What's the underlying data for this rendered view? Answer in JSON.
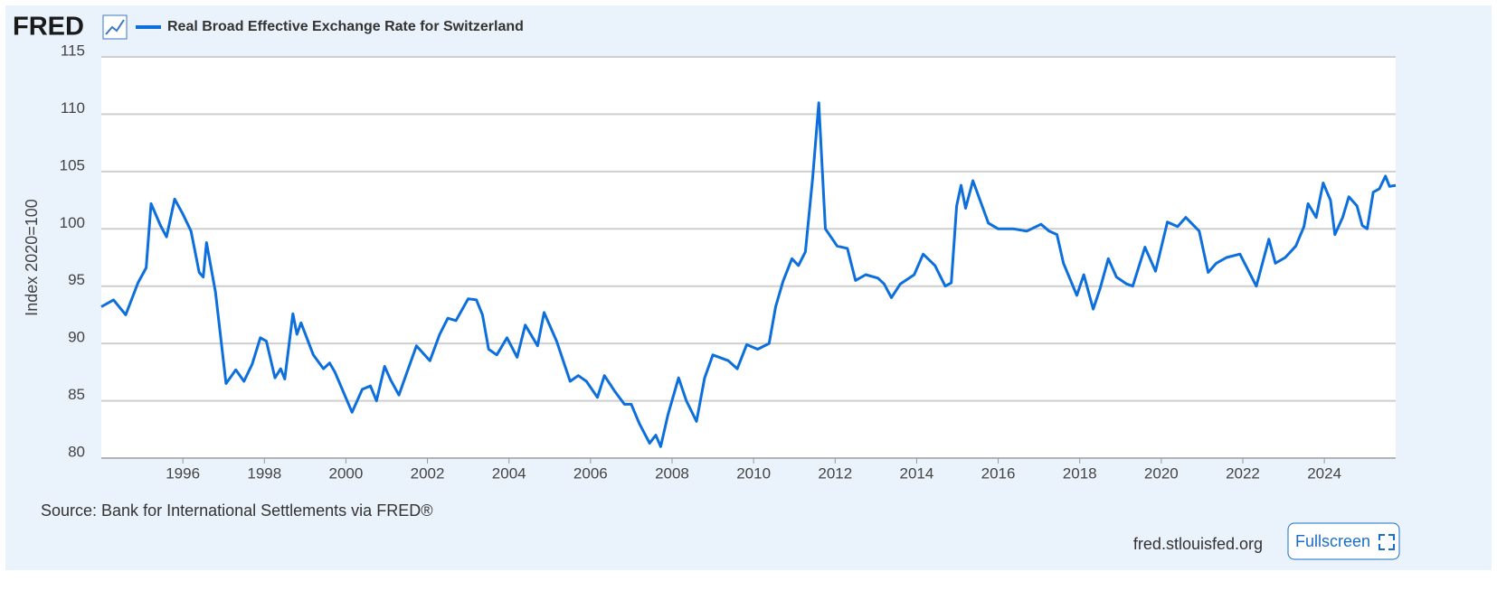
{
  "logo": "FRED",
  "chart_data": {
    "type": "line",
    "title": "Real Broad Effective Exchange Rate for Switzerland",
    "ylabel": "Index 2020=100",
    "source": "Source: Bank for International Settlements via FRED®",
    "site": "fred.stlouisfed.org",
    "button": "Fullscreen",
    "xlim": [
      1994,
      2025.75
    ],
    "xticks": [
      1996,
      1998,
      2000,
      2002,
      2004,
      2006,
      2008,
      2010,
      2012,
      2014,
      2016,
      2018,
      2020,
      2022,
      2024
    ],
    "ylim": [
      80,
      115
    ],
    "yticks": [
      80,
      85,
      90,
      95,
      100,
      105,
      110,
      115
    ],
    "grid": true,
    "series": [
      {
        "name": "Real Broad Effective Exchange Rate for Switzerland",
        "color": "#0c6fdc",
        "x": [
          1994.0,
          1994.3,
          1994.6,
          1994.9,
          1995.1,
          1995.22,
          1995.45,
          1995.6,
          1995.8,
          1996.0,
          1996.2,
          1996.4,
          1996.5,
          1996.58,
          1996.8,
          1997.06,
          1997.3,
          1997.5,
          1997.7,
          1997.9,
          1998.05,
          1998.26,
          1998.4,
          1998.5,
          1998.7,
          1998.8,
          1998.9,
          1999.2,
          1999.45,
          1999.6,
          1999.73,
          2000.15,
          2000.4,
          2000.6,
          2000.75,
          2000.95,
          2001.1,
          2001.3,
          2001.5,
          2001.73,
          2002.06,
          2002.3,
          2002.5,
          2002.7,
          2003.0,
          2003.2,
          2003.35,
          2003.5,
          2003.7,
          2003.95,
          2004.2,
          2004.4,
          2004.7,
          2004.86,
          2005.17,
          2005.5,
          2005.7,
          2005.9,
          2006.17,
          2006.34,
          2006.6,
          2006.83,
          2007.0,
          2007.2,
          2007.45,
          2007.6,
          2007.72,
          2007.9,
          2008.16,
          2008.35,
          2008.6,
          2008.8,
          2009.0,
          2009.38,
          2009.6,
          2009.83,
          2010.1,
          2010.38,
          2010.54,
          2010.72,
          2010.94,
          2011.1,
          2011.27,
          2011.45,
          2011.6,
          2011.76,
          2012.05,
          2012.3,
          2012.5,
          2012.75,
          2013.05,
          2013.2,
          2013.38,
          2013.6,
          2013.94,
          2014.16,
          2014.45,
          2014.7,
          2014.85,
          2014.98,
          2015.09,
          2015.2,
          2015.38,
          2015.76,
          2016.0,
          2016.38,
          2016.7,
          2017.05,
          2017.25,
          2017.44,
          2017.6,
          2017.93,
          2018.1,
          2018.33,
          2018.5,
          2018.7,
          2018.9,
          2019.15,
          2019.3,
          2019.6,
          2019.86,
          2020.15,
          2020.4,
          2020.6,
          2020.93,
          2021.15,
          2021.35,
          2021.6,
          2021.93,
          2022.33,
          2022.64,
          2022.8,
          2023.04,
          2023.3,
          2023.5,
          2023.6,
          2023.8,
          2023.97,
          2024.15,
          2024.26,
          2024.45,
          2024.6,
          2024.8,
          2024.93,
          2025.05,
          2025.2,
          2025.35,
          2025.5,
          2025.6,
          2025.75
        ],
        "values": [
          93.2,
          93.8,
          92.5,
          95.3,
          96.6,
          102.2,
          100.3,
          99.3,
          102.6,
          101.3,
          99.8,
          96.2,
          95.8,
          98.8,
          94.5,
          86.5,
          87.7,
          86.7,
          88.2,
          90.5,
          90.2,
          87.0,
          87.8,
          86.9,
          92.6,
          90.8,
          91.8,
          89.0,
          87.8,
          88.3,
          87.5,
          84.0,
          86.0,
          86.3,
          85.0,
          88.0,
          86.8,
          85.5,
          87.5,
          89.8,
          88.5,
          90.8,
          92.2,
          92.0,
          93.9,
          93.8,
          92.5,
          89.5,
          89.0,
          90.5,
          88.8,
          91.6,
          89.8,
          92.7,
          90.2,
          86.7,
          87.2,
          86.7,
          85.3,
          87.2,
          85.8,
          84.7,
          84.7,
          83.0,
          81.3,
          82.0,
          81.0,
          83.8,
          87.0,
          85.0,
          83.2,
          87.0,
          89.0,
          88.5,
          87.8,
          89.9,
          89.5,
          90.0,
          93.2,
          95.4,
          97.4,
          96.8,
          98.0,
          104.5,
          111.0,
          100.0,
          98.5,
          98.3,
          95.5,
          96.0,
          95.7,
          95.2,
          94.0,
          95.2,
          96.0,
          97.8,
          96.8,
          95.0,
          95.3,
          102.0,
          103.8,
          101.8,
          104.2,
          100.5,
          100.0,
          100.0,
          99.8,
          100.4,
          99.8,
          99.5,
          97.0,
          94.2,
          96.0,
          93.0,
          94.8,
          97.4,
          95.8,
          95.2,
          95.0,
          98.4,
          96.3,
          100.6,
          100.2,
          101.0,
          99.8,
          96.2,
          97.0,
          97.5,
          97.8,
          95.0,
          99.1,
          97.0,
          97.5,
          98.5,
          100.2,
          102.2,
          101.0,
          104.0,
          102.5,
          99.5,
          101.0,
          102.8,
          102.0,
          100.3,
          100.0,
          103.2,
          103.5,
          104.6,
          103.7,
          103.8
        ]
      }
    ]
  }
}
